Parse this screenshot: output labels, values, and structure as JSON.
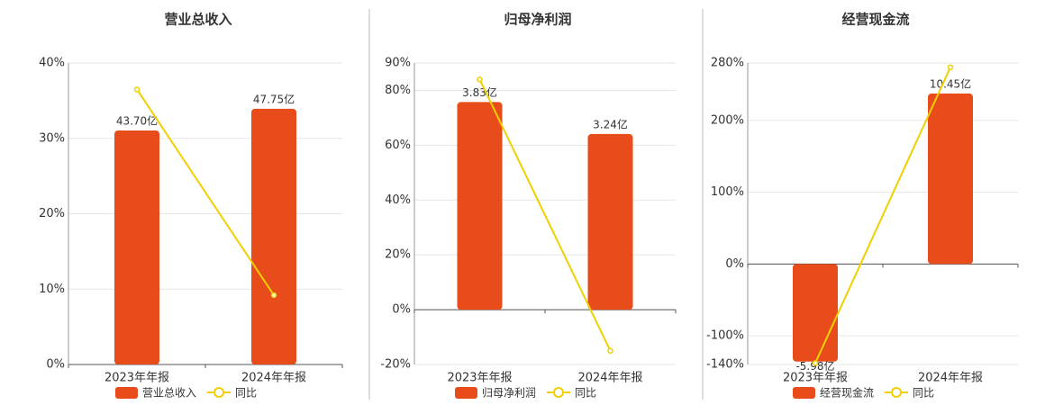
{
  "chart_data": [
    {
      "type": "bar",
      "title": "营业总收入",
      "categories": [
        "2023年年报",
        "2024年年报"
      ],
      "series": [
        {
          "name": "营业总收入",
          "color": "#e84c1a",
          "axis": "y2",
          "values": [
            43.7,
            47.75
          ],
          "value_labels": [
            "43.70亿",
            "47.75亿"
          ]
        },
        {
          "name": "同比",
          "color": "#f0d000",
          "type": "line",
          "values": [
            36.5,
            9.2
          ]
        }
      ],
      "ylim": [
        0,
        40
      ],
      "yticks": [
        {
          "value": 0,
          "label": "0%"
        },
        {
          "value": 10,
          "label": "10%"
        },
        {
          "value": 20,
          "label": "20%"
        },
        {
          "value": 30,
          "label": "30%"
        },
        {
          "value": 40,
          "label": "40%"
        }
      ],
      "y2lim": [
        0,
        56.3
      ],
      "grid": true
    },
    {
      "type": "bar",
      "title": "归母净利润",
      "categories": [
        "2023年年报",
        "2024年年报"
      ],
      "series": [
        {
          "name": "归母净利润",
          "color": "#e84c1a",
          "axis": "y2",
          "values": [
            3.83,
            3.24
          ],
          "value_labels": [
            "3.83亿",
            "3.24亿"
          ]
        },
        {
          "name": "同比",
          "color": "#f0d000",
          "type": "line",
          "values": [
            84,
            -15
          ]
        }
      ],
      "ylim": [
        -20,
        90
      ],
      "yticks": [
        {
          "value": -20,
          "label": "-20%"
        },
        {
          "value": 0,
          "label": "0%"
        },
        {
          "value": 20,
          "label": "20%"
        },
        {
          "value": 40,
          "label": "40%"
        },
        {
          "value": 60,
          "label": "60%"
        },
        {
          "value": 80,
          "label": "80%"
        },
        {
          "value": 90,
          "label": "90%"
        }
      ],
      "y2lim": [
        -1.01,
        4.55
      ],
      "grid": true
    },
    {
      "type": "bar",
      "title": "经营现金流",
      "categories": [
        "2023年年报",
        "2024年年报"
      ],
      "series": [
        {
          "name": "经营现金流",
          "color": "#e84c1a",
          "axis": "y2",
          "values": [
            -5.98,
            10.45
          ],
          "value_labels": [
            "-5.98亿",
            "10.45亿"
          ]
        },
        {
          "name": "同比",
          "color": "#f0d000",
          "type": "line",
          "values": [
            -138,
            274
          ]
        }
      ],
      "ylim": [
        -140,
        280
      ],
      "yticks": [
        {
          "value": -140,
          "label": "-140%"
        },
        {
          "value": -100,
          "label": "-100%"
        },
        {
          "value": 0,
          "label": "0%"
        },
        {
          "value": 100,
          "label": "100%"
        },
        {
          "value": 200,
          "label": "200%"
        },
        {
          "value": 280,
          "label": "280%"
        }
      ],
      "y2lim": [
        -6.16,
        12.32
      ],
      "grid": true
    }
  ]
}
